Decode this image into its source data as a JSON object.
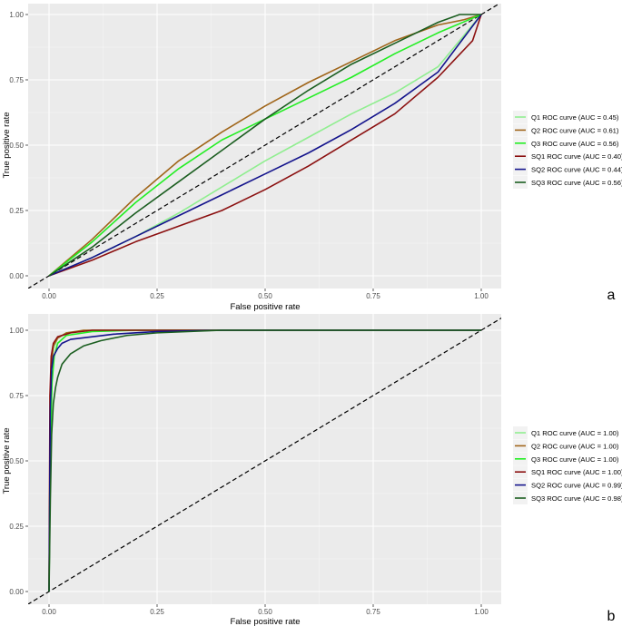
{
  "colors": {
    "panel_bg": "#ebebeb",
    "grid_major": "#ffffff",
    "diagonal": "#000000"
  },
  "chart_data": [
    {
      "type": "line",
      "panel_label": "a",
      "xlabel": "False positive rate",
      "ylabel": "True positive rate",
      "xlim": [
        0,
        1
      ],
      "ylim": [
        0,
        1
      ],
      "x_ticks": [
        "0.00",
        "0.25",
        "0.50",
        "0.75",
        "1.00"
      ],
      "y_ticks": [
        "0.00",
        "0.25",
        "0.50",
        "0.75",
        "1.00"
      ],
      "legend_position": "right",
      "series": [
        {
          "name": "Q1 ROC curve (AUC = 0.45)",
          "color": "#90ee90",
          "x": [
            0,
            0.1,
            0.2,
            0.3,
            0.4,
            0.5,
            0.6,
            0.7,
            0.8,
            0.9,
            1.0
          ],
          "y": [
            0,
            0.07,
            0.15,
            0.24,
            0.34,
            0.44,
            0.53,
            0.62,
            0.7,
            0.8,
            1.0
          ]
        },
        {
          "name": "Q2 ROC curve (AUC = 0.61)",
          "color": "#a0661b",
          "x": [
            0,
            0.1,
            0.2,
            0.3,
            0.4,
            0.5,
            0.6,
            0.7,
            0.8,
            0.9,
            0.96,
            1.0
          ],
          "y": [
            0,
            0.14,
            0.3,
            0.44,
            0.55,
            0.65,
            0.74,
            0.82,
            0.9,
            0.96,
            0.98,
            1.0
          ]
        },
        {
          "name": "Q3 ROC curve (AUC = 0.56)",
          "color": "#22ee22",
          "x": [
            0,
            0.1,
            0.2,
            0.3,
            0.4,
            0.5,
            0.6,
            0.7,
            0.8,
            0.9,
            1.0
          ],
          "y": [
            0,
            0.13,
            0.28,
            0.41,
            0.52,
            0.6,
            0.68,
            0.76,
            0.85,
            0.93,
            1.0
          ]
        },
        {
          "name": "SQ1 ROC curve (AUC = 0.40)",
          "color": "#8b1010",
          "x": [
            0,
            0.1,
            0.2,
            0.3,
            0.4,
            0.5,
            0.6,
            0.7,
            0.8,
            0.9,
            0.98,
            1.0
          ],
          "y": [
            0,
            0.06,
            0.13,
            0.19,
            0.25,
            0.33,
            0.42,
            0.52,
            0.62,
            0.76,
            0.9,
            1.0
          ]
        },
        {
          "name": "SQ2 ROC curve (AUC = 0.44)",
          "color": "#14148c",
          "x": [
            0,
            0.1,
            0.2,
            0.3,
            0.4,
            0.5,
            0.6,
            0.7,
            0.8,
            0.9,
            1.0
          ],
          "y": [
            0,
            0.07,
            0.15,
            0.23,
            0.31,
            0.39,
            0.47,
            0.56,
            0.66,
            0.78,
            1.0
          ]
        },
        {
          "name": "SQ3 ROC curve (AUC = 0.56)",
          "color": "#1b5e20",
          "x": [
            0,
            0.1,
            0.2,
            0.3,
            0.4,
            0.5,
            0.6,
            0.7,
            0.8,
            0.9,
            0.95,
            1.0
          ],
          "y": [
            0,
            0.11,
            0.24,
            0.36,
            0.48,
            0.6,
            0.71,
            0.81,
            0.89,
            0.97,
            1.0,
            1.0
          ]
        }
      ],
      "reference_line": {
        "x": [
          -0.05,
          1.05
        ],
        "y": [
          -0.05,
          1.05
        ]
      }
    },
    {
      "type": "line",
      "panel_label": "b",
      "xlabel": "False positive rate",
      "ylabel": "True positive rate",
      "xlim": [
        0,
        1
      ],
      "ylim": [
        0,
        1
      ],
      "x_ticks": [
        "0.00",
        "0.25",
        "0.50",
        "0.75",
        "1.00"
      ],
      "y_ticks": [
        "0.00",
        "0.25",
        "0.50",
        "0.75",
        "1.00"
      ],
      "legend_position": "right",
      "series": [
        {
          "name": "Q1 ROC curve (AUC = 1.00)",
          "color": "#90ee90",
          "x": [
            0,
            0.003,
            0.006,
            0.01,
            0.02,
            0.04,
            0.1,
            0.2,
            1.0
          ],
          "y": [
            0,
            0.6,
            0.85,
            0.93,
            0.97,
            0.99,
            1.0,
            1.0,
            1.0
          ]
        },
        {
          "name": "Q2 ROC curve (AUC = 1.00)",
          "color": "#a0661b",
          "x": [
            0,
            0.003,
            0.006,
            0.01,
            0.02,
            0.04,
            0.08,
            0.2,
            1.0
          ],
          "y": [
            0,
            0.7,
            0.88,
            0.94,
            0.97,
            0.99,
            1.0,
            1.0,
            1.0
          ]
        },
        {
          "name": "Q3 ROC curve (AUC = 1.00)",
          "color": "#22ee22",
          "x": [
            0,
            0.003,
            0.007,
            0.012,
            0.02,
            0.04,
            0.1,
            0.2,
            1.0
          ],
          "y": [
            0,
            0.55,
            0.8,
            0.9,
            0.95,
            0.98,
            0.995,
            1.0,
            1.0
          ]
        },
        {
          "name": "SQ1 ROC curve (AUC = 1.00)",
          "color": "#8b1010",
          "x": [
            0,
            0.002,
            0.005,
            0.01,
            0.02,
            0.05,
            0.1,
            0.2,
            1.0
          ],
          "y": [
            0,
            0.75,
            0.9,
            0.95,
            0.975,
            0.99,
            1.0,
            1.0,
            1.0
          ]
        },
        {
          "name": "SQ2 ROC curve (AUC = 0.99)",
          "color": "#14148c",
          "x": [
            0,
            0.003,
            0.006,
            0.01,
            0.02,
            0.03,
            0.05,
            0.1,
            0.15,
            0.25,
            0.4,
            1.0
          ],
          "y": [
            0,
            0.7,
            0.85,
            0.9,
            0.93,
            0.95,
            0.965,
            0.975,
            0.985,
            0.995,
            1.0,
            1.0
          ]
        },
        {
          "name": "SQ3 ROC curve (AUC = 0.98)",
          "color": "#1b5e20",
          "x": [
            0,
            0.003,
            0.006,
            0.01,
            0.015,
            0.02,
            0.03,
            0.05,
            0.08,
            0.12,
            0.18,
            0.25,
            0.4,
            1.0
          ],
          "y": [
            0,
            0.35,
            0.6,
            0.72,
            0.78,
            0.82,
            0.87,
            0.91,
            0.94,
            0.96,
            0.98,
            0.99,
            1.0,
            1.0
          ]
        }
      ],
      "reference_line": {
        "x": [
          -0.05,
          1.05
        ],
        "y": [
          -0.05,
          1.05
        ]
      }
    }
  ]
}
